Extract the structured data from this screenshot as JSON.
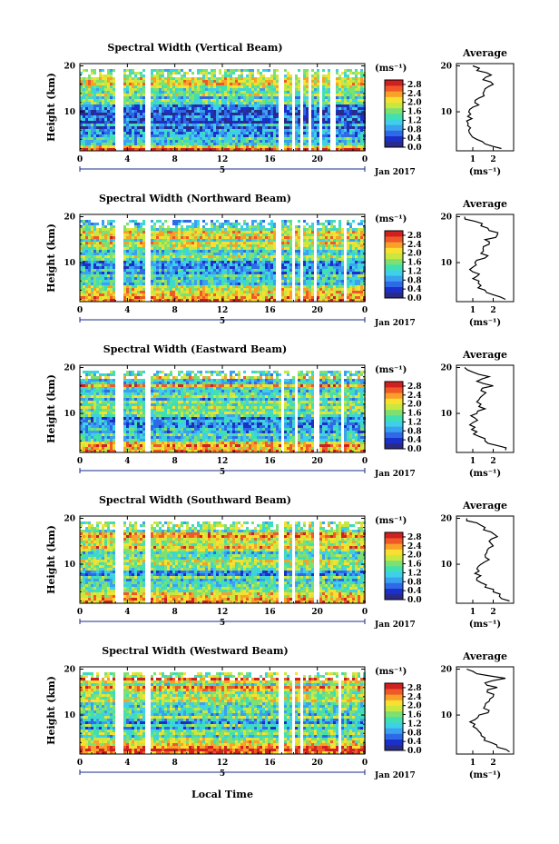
{
  "figure": {
    "xlabel": "Local Time",
    "date_label": "Jan 2017",
    "panel_y_label": "Height (km)",
    "colorbar_unit": "(ms⁻¹)",
    "avg_title": "Average",
    "avg_xlabel": "(ms⁻¹)",
    "day_marker": "5"
  },
  "colors": {
    "colormap": [
      "#2a2a88",
      "#1a30c8",
      "#2e6ae8",
      "#3aa0f0",
      "#3ed0e8",
      "#40e0b0",
      "#7ee070",
      "#c8e840",
      "#f8e030",
      "#f8a028",
      "#f05828",
      "#d02020"
    ],
    "background": "#ffffff"
  },
  "chart_data": [
    {
      "type": "heatmap",
      "title": "Spectral Width (Vertical Beam)",
      "xlabel": "",
      "ylabel": "Height (km)",
      "x_ticks": [
        "0",
        "4",
        "8",
        "12",
        "16",
        "20",
        "0"
      ],
      "y_ticks": [
        "10",
        "20"
      ],
      "xlim": [
        0,
        24
      ],
      "ylim": [
        1.5,
        20.5
      ],
      "colorbar_ticks": [
        "0.0",
        "0.4",
        "0.8",
        "1.2",
        "1.6",
        "2.0",
        "2.4",
        "2.8"
      ],
      "colorbar_range": [
        0,
        3.0
      ],
      "data_gaps_hours": [
        [
          3.0,
          3.7
        ],
        [
          5.6,
          6.0
        ],
        [
          16.8,
          17.2
        ],
        [
          17.8,
          18.0
        ],
        [
          18.6,
          18.9
        ],
        [
          19.3,
          19.6
        ],
        [
          20.1,
          20.3
        ],
        [
          21.2,
          21.6
        ]
      ],
      "average_profile": {
        "title": "Average",
        "xlabel": "(ms⁻¹)",
        "x_ticks": [
          "1",
          "2"
        ],
        "y_ticks": [
          "10",
          "20"
        ],
        "xlim": [
          0.2,
          3.0
        ],
        "ylim": [
          1.5,
          20.5
        ],
        "height_km": [
          2,
          3,
          4,
          5,
          6,
          7,
          8,
          9,
          10,
          11,
          12,
          13,
          14,
          15,
          16,
          17,
          18,
          19,
          20
        ],
        "width_ms": [
          2.4,
          1.6,
          1.2,
          0.9,
          0.8,
          0.75,
          0.7,
          0.75,
          0.8,
          1.0,
          1.1,
          1.3,
          1.5,
          1.6,
          2.0,
          1.5,
          1.9,
          1.2,
          1.0
        ]
      }
    },
    {
      "type": "heatmap",
      "title": "Spectral Width (Northward Beam)",
      "xlabel": "",
      "ylabel": "Height (km)",
      "x_ticks": [
        "0",
        "4",
        "8",
        "12",
        "16",
        "20",
        "0"
      ],
      "y_ticks": [
        "10",
        "20"
      ],
      "xlim": [
        0,
        24
      ],
      "ylim": [
        1.5,
        20.5
      ],
      "colorbar_ticks": [
        "0.0",
        "0.4",
        "0.8",
        "1.2",
        "1.6",
        "2.0",
        "2.4",
        "2.8"
      ],
      "colorbar_range": [
        0,
        3.0
      ],
      "data_gaps_hours": [
        [
          3.0,
          3.7
        ],
        [
          5.6,
          6.0
        ],
        [
          16.6,
          17.0
        ],
        [
          17.8,
          18.0
        ],
        [
          18.6,
          18.8
        ],
        [
          19.7,
          20.0
        ],
        [
          22.3,
          22.5
        ]
      ],
      "average_profile": {
        "title": "Average",
        "xlabel": "(ms⁻¹)",
        "x_ticks": [
          "1",
          "2"
        ],
        "y_ticks": [
          "10",
          "20"
        ],
        "xlim": [
          0.2,
          3.0
        ],
        "ylim": [
          1.5,
          20.5
        ],
        "height_km": [
          2,
          3,
          4,
          5,
          6,
          7,
          8,
          9,
          10,
          11,
          12,
          13,
          14,
          15,
          16,
          17,
          18,
          19,
          20
        ],
        "width_ms": [
          2.6,
          2.0,
          1.6,
          1.4,
          1.3,
          1.2,
          1.0,
          1.0,
          1.1,
          1.6,
          1.4,
          1.5,
          1.8,
          1.6,
          2.2,
          1.8,
          1.4,
          1.1,
          0.6
        ]
      }
    },
    {
      "type": "heatmap",
      "title": "Spectral Width (Eastward Beam)",
      "xlabel": "",
      "ylabel": "Height (km)",
      "x_ticks": [
        "0",
        "4",
        "8",
        "12",
        "16",
        "20",
        "0"
      ],
      "y_ticks": [
        "10",
        "20"
      ],
      "xlim": [
        0,
        24
      ],
      "ylim": [
        1.5,
        20.5
      ],
      "colorbar_ticks": [
        "0.0",
        "0.4",
        "0.8",
        "1.2",
        "1.6",
        "2.0",
        "2.4",
        "2.8"
      ],
      "colorbar_range": [
        0,
        3.0
      ],
      "data_gaps_hours": [
        [
          3.0,
          3.7
        ],
        [
          5.6,
          6.0
        ],
        [
          17.0,
          17.3
        ],
        [
          18.2,
          18.4
        ],
        [
          19.8,
          20.1
        ],
        [
          21.9,
          22.2
        ]
      ],
      "average_profile": {
        "title": "Average",
        "xlabel": "(ms⁻¹)",
        "x_ticks": [
          "1",
          "2"
        ],
        "y_ticks": [
          "10",
          "20"
        ],
        "xlim": [
          0.2,
          3.0
        ],
        "ylim": [
          1.5,
          20.5
        ],
        "height_km": [
          2,
          3,
          4,
          5,
          6,
          7,
          8,
          9,
          10,
          11,
          12,
          13,
          14,
          15,
          16,
          17,
          18,
          19,
          20
        ],
        "width_ms": [
          2.6,
          2.2,
          1.6,
          1.3,
          1.2,
          1.1,
          1.0,
          1.1,
          1.2,
          1.6,
          1.4,
          1.3,
          1.5,
          1.4,
          2.0,
          1.2,
          1.8,
          1.0,
          0.6
        ]
      }
    },
    {
      "type": "heatmap",
      "title": "Spectral Width (Southward Beam)",
      "xlabel": "",
      "ylabel": "Height (km)",
      "x_ticks": [
        "0",
        "4",
        "8",
        "12",
        "16",
        "20",
        "0"
      ],
      "y_ticks": [
        "10",
        "20"
      ],
      "xlim": [
        0,
        24
      ],
      "ylim": [
        1.5,
        20.5
      ],
      "colorbar_ticks": [
        "0.0",
        "0.4",
        "0.8",
        "1.2",
        "1.6",
        "2.0",
        "2.4",
        "2.8"
      ],
      "colorbar_range": [
        0,
        3.0
      ],
      "data_gaps_hours": [
        [
          3.0,
          3.7
        ],
        [
          5.6,
          6.0
        ],
        [
          16.8,
          17.1
        ],
        [
          17.9,
          18.1
        ],
        [
          18.7,
          18.9
        ],
        [
          19.8,
          20.1
        ]
      ],
      "average_profile": {
        "title": "Average",
        "xlabel": "(ms⁻¹)",
        "x_ticks": [
          "1",
          "2"
        ],
        "y_ticks": [
          "10",
          "20"
        ],
        "xlim": [
          0.2,
          3.0
        ],
        "ylim": [
          1.5,
          20.5
        ],
        "height_km": [
          2,
          3,
          4,
          5,
          6,
          7,
          8,
          9,
          10,
          11,
          12,
          13,
          14,
          15,
          16,
          17,
          18,
          19,
          20
        ],
        "width_ms": [
          2.8,
          2.3,
          2.0,
          1.6,
          1.4,
          1.2,
          1.1,
          1.2,
          1.4,
          1.8,
          1.6,
          1.7,
          2.0,
          1.8,
          2.2,
          1.9,
          1.6,
          1.2,
          0.7
        ]
      }
    },
    {
      "type": "heatmap",
      "title": "Spectral Width (Westward Beam)",
      "xlabel": "Local Time",
      "ylabel": "Height (km)",
      "x_ticks": [
        "0",
        "4",
        "8",
        "12",
        "16",
        "20",
        "0"
      ],
      "y_ticks": [
        "10",
        "20"
      ],
      "xlim": [
        0,
        24
      ],
      "ylim": [
        1.5,
        20.5
      ],
      "colorbar_ticks": [
        "0.0",
        "0.4",
        "0.8",
        "1.2",
        "1.6",
        "2.0",
        "2.4",
        "2.8"
      ],
      "colorbar_range": [
        0,
        3.0
      ],
      "data_gaps_hours": [
        [
          3.0,
          3.7
        ],
        [
          5.6,
          6.0
        ],
        [
          16.8,
          17.1
        ],
        [
          17.8,
          18.0
        ],
        [
          18.6,
          18.8
        ],
        [
          21.8,
          22.1
        ]
      ],
      "average_profile": {
        "title": "Average",
        "xlabel": "(ms⁻¹)",
        "x_ticks": [
          "1",
          "2"
        ],
        "y_ticks": [
          "10",
          "20"
        ],
        "xlim": [
          0.2,
          3.0
        ],
        "ylim": [
          1.5,
          20.5
        ],
        "height_km": [
          2,
          3,
          4,
          5,
          6,
          7,
          8,
          9,
          10,
          11,
          12,
          13,
          14,
          15,
          16,
          17,
          18,
          19,
          20
        ],
        "width_ms": [
          2.8,
          2.2,
          1.9,
          1.6,
          1.4,
          1.2,
          1.1,
          1.1,
          1.3,
          1.8,
          1.6,
          1.8,
          2.0,
          1.7,
          2.2,
          1.6,
          2.6,
          1.2,
          0.7
        ]
      }
    }
  ]
}
